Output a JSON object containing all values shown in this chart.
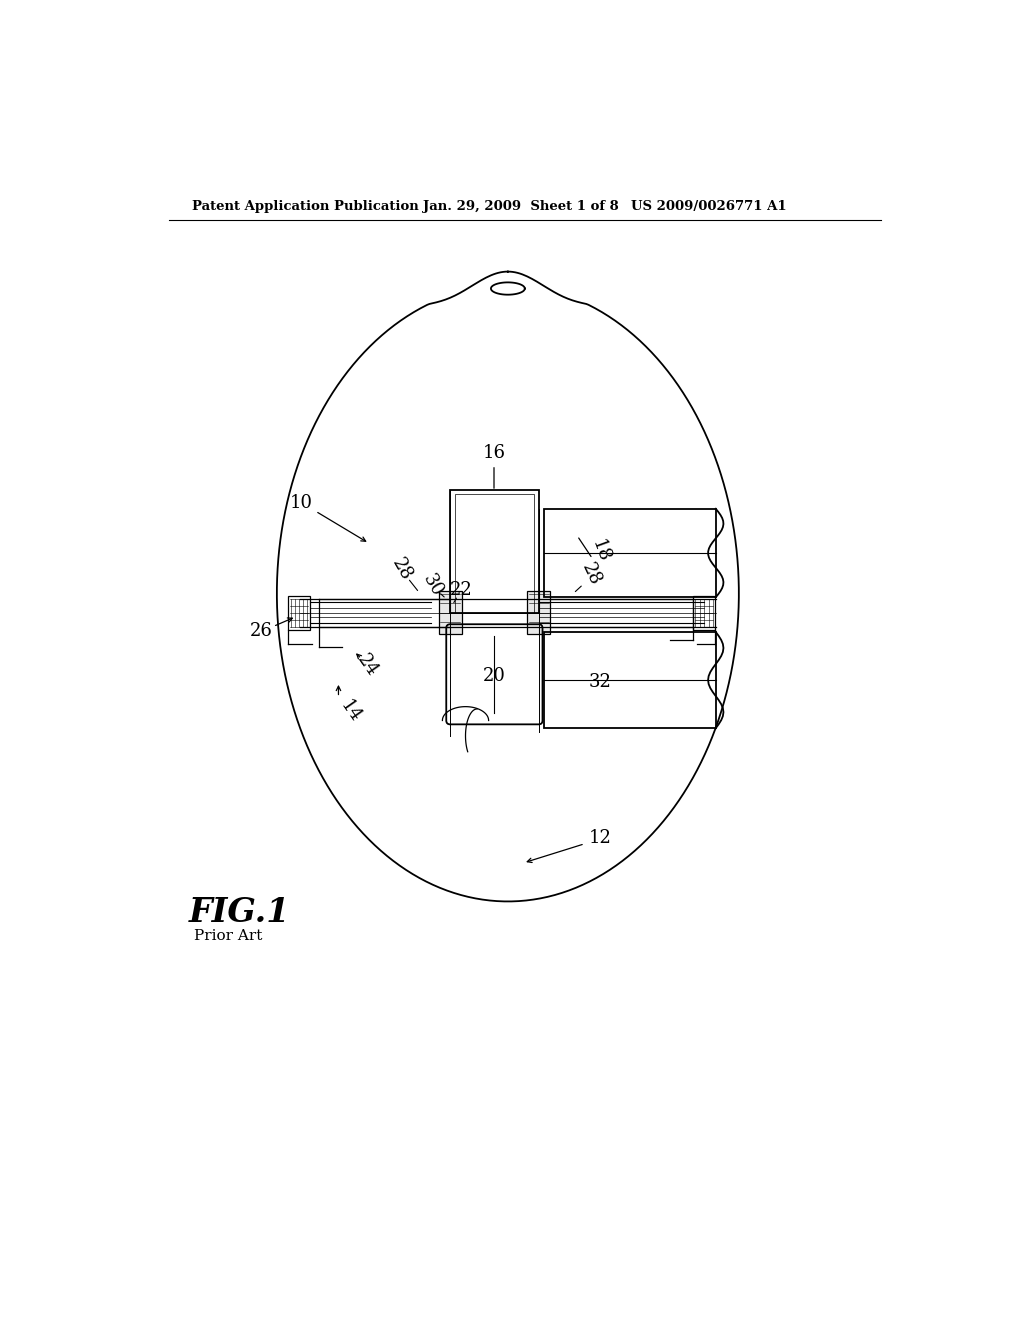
{
  "bg_color": "#ffffff",
  "header_text": "Patent Application Publication",
  "header_date": "Jan. 29, 2009  Sheet 1 of 8",
  "header_patent": "US 2009/0026771 A1",
  "fig_label": "FIG.1",
  "fig_sublabel": "Prior Art"
}
